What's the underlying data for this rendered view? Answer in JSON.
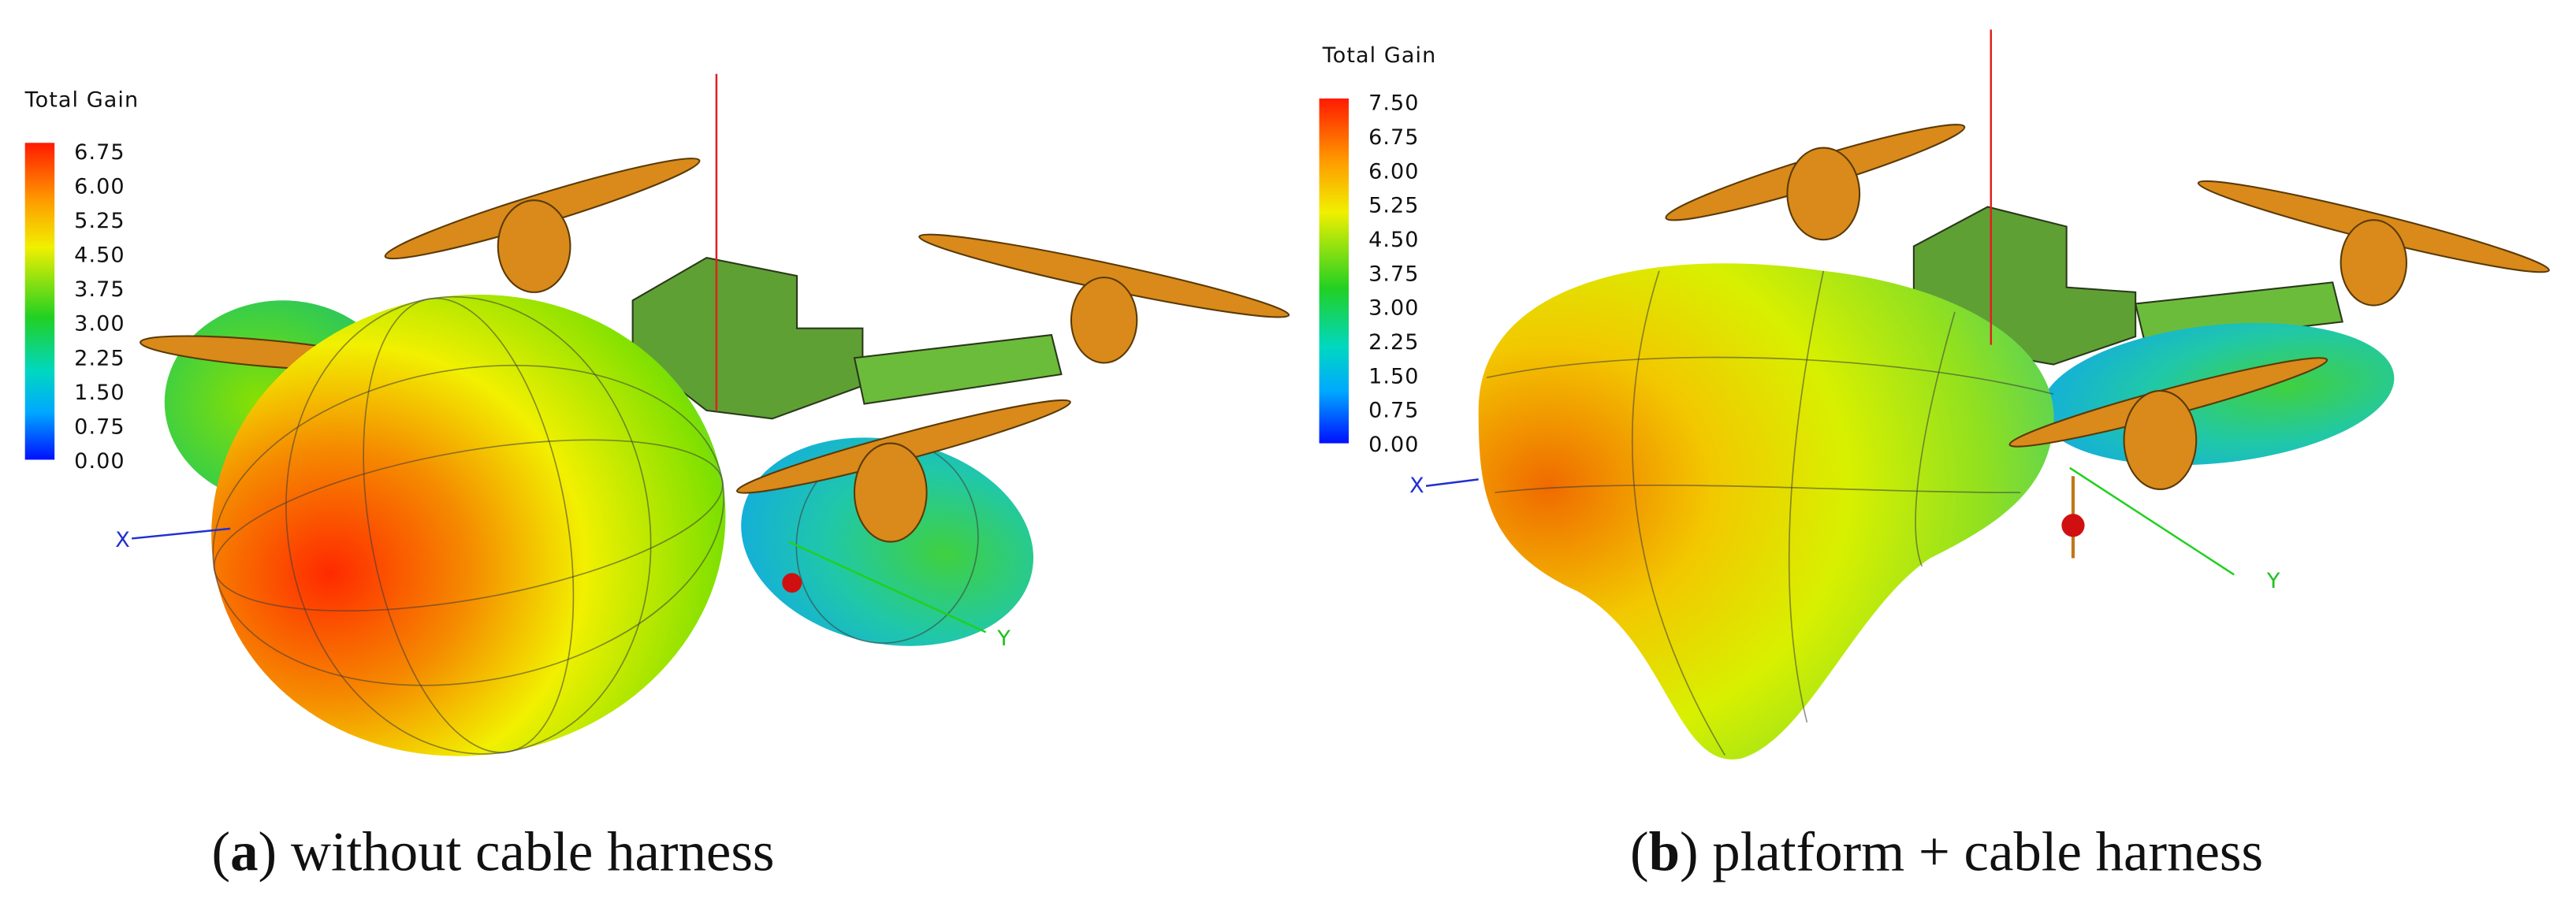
{
  "panels": [
    {
      "colorbar": {
        "title": "Total Gain",
        "ticks": [
          "6.75",
          "6.00",
          "5.25",
          "4.50",
          "3.75",
          "3.00",
          "2.25",
          "1.50",
          "0.75",
          "0.00"
        ]
      },
      "axis_labels": {
        "x": "X",
        "y": "Y"
      },
      "caption": {
        "open": "(",
        "letter": "a",
        "rest": ") without cable harness"
      }
    },
    {
      "colorbar": {
        "title": "Total Gain",
        "ticks": [
          "7.50",
          "6.75",
          "6.00",
          "5.25",
          "4.50",
          "3.75",
          "3.00",
          "2.25",
          "1.50",
          "0.75",
          "0.00"
        ]
      },
      "axis_labels": {
        "x": "X",
        "y": "Y"
      },
      "caption": {
        "open": "(",
        "letter": "b",
        "rest": ") platform + cable harness"
      }
    }
  ]
}
